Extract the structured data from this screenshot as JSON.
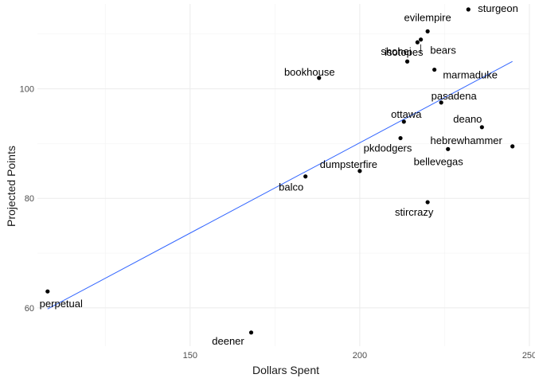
{
  "chart_data": {
    "type": "scatter",
    "xlabel": "Dollars Spent",
    "ylabel": "Projected Points",
    "xlim": [
      105,
      250
    ],
    "ylim": [
      53,
      115.5
    ],
    "xticks": [
      150,
      200,
      250
    ],
    "yticks": [
      60,
      80,
      100
    ],
    "grid": true,
    "points": [
      {
        "label": "sturgeon",
        "x": 232,
        "y": 114.5
      },
      {
        "label": "evilempire",
        "x": 220,
        "y": 110.5
      },
      {
        "label": "shohei",
        "x": 214,
        "y": 105
      },
      {
        "label": "bears",
        "x": 218,
        "y": 109
      },
      {
        "label": "isotopes",
        "x": 217,
        "y": 108.5
      },
      {
        "label": "marmaduke",
        "x": 222,
        "y": 103.5
      },
      {
        "label": "bookhouse",
        "x": 188,
        "y": 102
      },
      {
        "label": "pasadena",
        "x": 224,
        "y": 97.5
      },
      {
        "label": "ottawa",
        "x": 213,
        "y": 94
      },
      {
        "label": "deano",
        "x": 236,
        "y": 93
      },
      {
        "label": "hebrewhammer",
        "x": 245,
        "y": 89.5
      },
      {
        "label": "pkdodgers",
        "x": 212,
        "y": 91
      },
      {
        "label": "bellevegas",
        "x": 226,
        "y": 89
      },
      {
        "label": "dumpsterfire",
        "x": 200,
        "y": 85
      },
      {
        "label": "balco",
        "x": 184,
        "y": 84
      },
      {
        "label": "stircrazy",
        "x": 220,
        "y": 79.3
      },
      {
        "label": "perpetual",
        "x": 108,
        "y": 63
      },
      {
        "label": "deener",
        "x": 168,
        "y": 55.5
      }
    ],
    "trendline": {
      "x": [
        108,
        245
      ],
      "y": [
        59.8,
        105
      ]
    },
    "colors": {
      "trendline": "#3366ff",
      "points": "#000000"
    }
  }
}
